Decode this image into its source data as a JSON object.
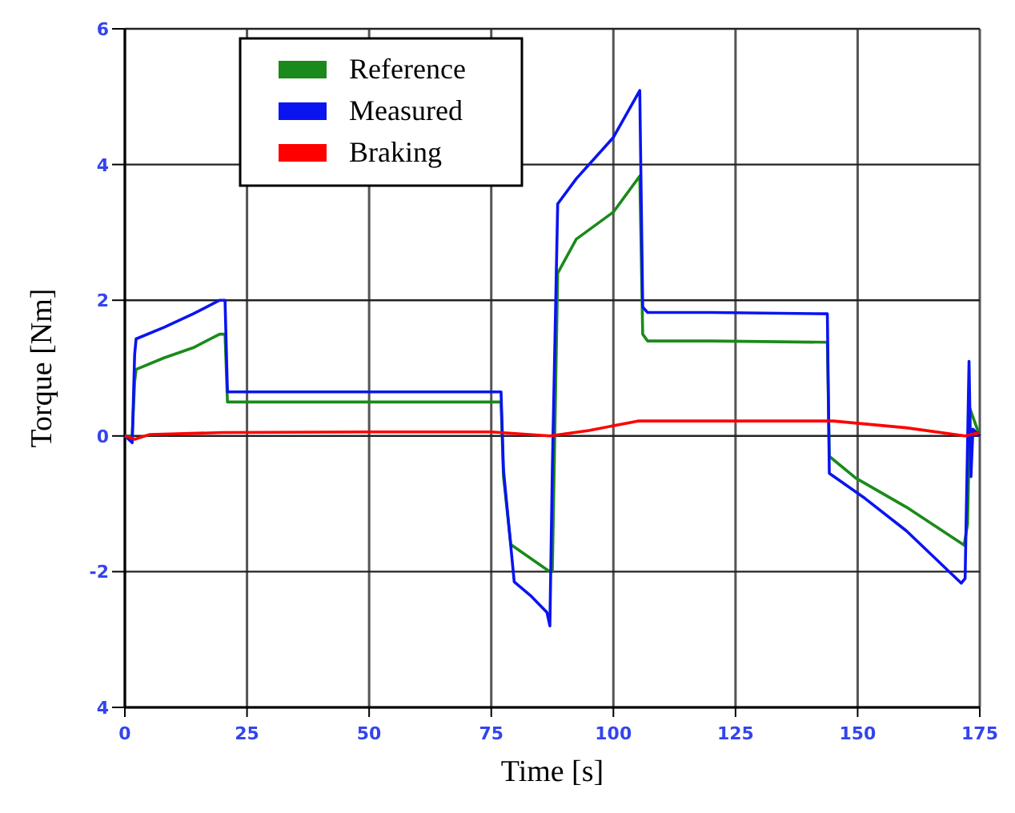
{
  "chart_data": {
    "type": "line",
    "xlabel": "Time [s]",
    "ylabel": "Torque [Nm]",
    "xlim": [
      0,
      175
    ],
    "ylim": [
      -4,
      6
    ],
    "xticks": [
      0,
      25,
      50,
      75,
      100,
      125,
      150,
      175
    ],
    "yticks": [
      {
        "value": -4,
        "label": "4"
      },
      -2,
      0,
      2,
      4,
      6
    ],
    "grid": true,
    "legend": "top left",
    "line_style": "solid",
    "series": [
      {
        "name": "Reference",
        "color": "#1a8a1a",
        "x": [
          0,
          1.5,
          2,
          2.3,
          8,
          14,
          19.4,
          20.5,
          21,
          30,
          50,
          77,
          77.5,
          79,
          83,
          87,
          87.5,
          88.6,
          92.4,
          100,
          105.4,
          106,
          107,
          120,
          143.8,
          144.2,
          149.6,
          160,
          171.8,
          172.5,
          173,
          175
        ],
        "values": [
          0,
          0,
          0.8,
          0.98,
          1.15,
          1.3,
          1.5,
          1.5,
          0.5,
          0.5,
          0.5,
          0.5,
          -0.6,
          -1.6,
          -1.8,
          -2.0,
          -2.0,
          2.4,
          2.9,
          3.3,
          3.83,
          1.5,
          1.4,
          1.4,
          1.38,
          -0.3,
          -0.62,
          -1.05,
          -1.61,
          -1.3,
          0.4,
          0
        ]
      },
      {
        "name": "Measured",
        "color": "#0a14f0",
        "x": [
          0,
          1.5,
          2,
          2.3,
          8,
          14,
          19.4,
          20.5,
          21,
          30,
          50,
          77,
          77.5,
          79.7,
          83,
          86.4,
          87,
          87.5,
          88.6,
          92.4,
          100,
          105.4,
          106,
          107,
          120,
          143.8,
          144.2,
          151.5,
          160,
          171.2,
          172,
          172.8,
          173.2,
          173.6,
          175
        ],
        "values": [
          0,
          -0.1,
          1.2,
          1.43,
          1.6,
          1.8,
          2.0,
          2.0,
          0.65,
          0.65,
          0.65,
          0.65,
          -0.5,
          -2.15,
          -2.35,
          -2.6,
          -2.8,
          -0.5,
          3.42,
          3.79,
          4.4,
          5.09,
          1.9,
          1.82,
          1.82,
          1.8,
          -0.55,
          -0.92,
          -1.4,
          -2.17,
          -2.1,
          1.1,
          -0.6,
          0.1,
          0
        ]
      },
      {
        "name": "Braking",
        "color": "#ff0000",
        "x": [
          0,
          2,
          5,
          20,
          50,
          75,
          87,
          95,
          105,
          125,
          145,
          160,
          172,
          175
        ],
        "values": [
          0,
          -0.05,
          0.02,
          0.05,
          0.06,
          0.06,
          0,
          0.08,
          0.22,
          0.22,
          0.22,
          0.12,
          0,
          0.05
        ]
      }
    ]
  }
}
